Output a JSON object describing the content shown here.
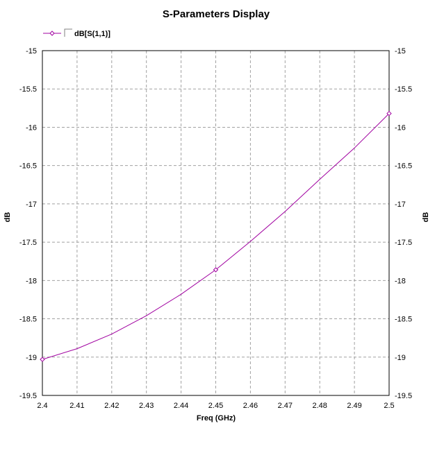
{
  "chart_data": {
    "type": "line",
    "title": "S-Parameters Display",
    "xlabel": "Freq (GHz)",
    "ylabel_left": "dB",
    "ylabel_right": "dB",
    "xlim": [
      2.4,
      2.5
    ],
    "ylim": [
      -19.5,
      -15
    ],
    "x_ticks": [
      "2.4",
      "2.41",
      "2.42",
      "2.43",
      "2.44",
      "2.45",
      "2.46",
      "2.47",
      "2.48",
      "2.49",
      "2.5"
    ],
    "y_ticks": [
      "-15",
      "-15.5",
      "-16",
      "-16.5",
      "-17",
      "-17.5",
      "-18",
      "-18.5",
      "-19",
      "-19.5"
    ],
    "grid": true,
    "legend_position": "top-left",
    "series": [
      {
        "name": "dB[S(1,1)]",
        "color": "#a000a0",
        "marker": "diamond",
        "x": [
          2.4,
          2.41,
          2.42,
          2.43,
          2.44,
          2.45,
          2.46,
          2.47,
          2.48,
          2.49,
          2.5
        ],
        "y": [
          -19.03,
          -18.89,
          -18.7,
          -18.46,
          -18.18,
          -17.86,
          -17.49,
          -17.1,
          -16.68,
          -16.27,
          -15.82
        ],
        "markers_at": [
          0,
          5,
          10
        ]
      }
    ]
  }
}
